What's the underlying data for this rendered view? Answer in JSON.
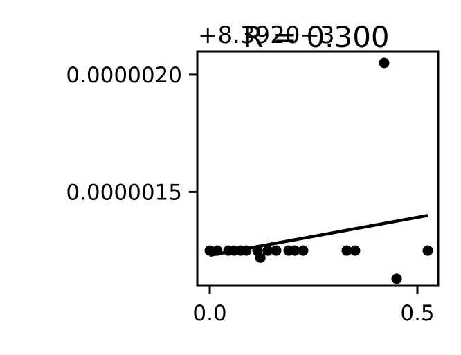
{
  "chart_data": {
    "type": "scatter",
    "title": "R = 0.300",
    "offset_text": "+8.3920−3",
    "xlabel": "",
    "ylabel": "",
    "xlim": [
      -0.03,
      0.55
    ],
    "ylim": [
      1.1e-06,
      2.1e-06
    ],
    "x_ticks": [
      {
        "value": 0.0,
        "label": "0.0"
      },
      {
        "value": 0.5,
        "label": "0.5"
      }
    ],
    "y_ticks": [
      {
        "value": 1.5e-06,
        "label": "0.0000015"
      },
      {
        "value": 2e-06,
        "label": "0.0000020"
      }
    ],
    "points": [
      {
        "x": 0.0,
        "y": 1.25e-06
      },
      {
        "x": 0.018,
        "y": 1.25e-06
      },
      {
        "x": 0.045,
        "y": 1.25e-06
      },
      {
        "x": 0.058,
        "y": 1.25e-06
      },
      {
        "x": 0.075,
        "y": 1.25e-06
      },
      {
        "x": 0.088,
        "y": 1.25e-06
      },
      {
        "x": 0.115,
        "y": 1.25e-06
      },
      {
        "x": 0.122,
        "y": 1.22e-06
      },
      {
        "x": 0.14,
        "y": 1.25e-06
      },
      {
        "x": 0.16,
        "y": 1.25e-06
      },
      {
        "x": 0.19,
        "y": 1.25e-06
      },
      {
        "x": 0.205,
        "y": 1.25e-06
      },
      {
        "x": 0.225,
        "y": 1.25e-06
      },
      {
        "x": 0.33,
        "y": 1.25e-06
      },
      {
        "x": 0.35,
        "y": 1.25e-06
      },
      {
        "x": 0.42,
        "y": 2.05e-06
      },
      {
        "x": 0.45,
        "y": 1.13e-06
      },
      {
        "x": 0.525,
        "y": 1.25e-06
      }
    ],
    "fit_line": {
      "x": [
        0.0,
        0.525
      ],
      "y": [
        1.23e-06,
        1.4e-06
      ]
    },
    "grid": false,
    "colors": {
      "points": "#000000",
      "line": "#000000"
    }
  }
}
